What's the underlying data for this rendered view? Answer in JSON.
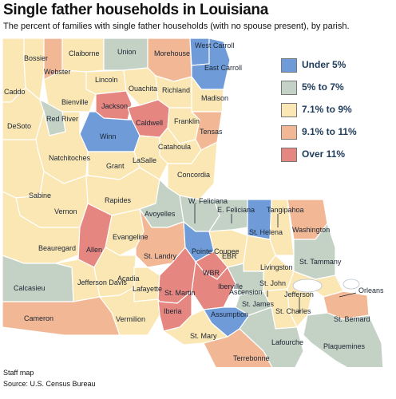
{
  "header": {
    "title": "Single father households in Louisiana",
    "subtitle": "The percent of families with single father households (with no spouse present), by parish."
  },
  "legend": [
    {
      "label": "Under 5%",
      "color": "#6f9bd8"
    },
    {
      "label": "5% to 7%",
      "color": "#c4d2c6"
    },
    {
      "label": "7.1% to 9%",
      "color": "#fbe7b4"
    },
    {
      "label": "9.1% to 11%",
      "color": "#f2b895"
    },
    {
      "label": "Over 11%",
      "color": "#e68680"
    }
  ],
  "footer": {
    "credit": "Staff map",
    "source": "Source: U.S. Census Bureau"
  },
  "parishes": [
    {
      "name": "Caddo",
      "category": 3
    },
    {
      "name": "Bossier",
      "category": 3
    },
    {
      "name": "Webster",
      "category": 4
    },
    {
      "name": "Claiborne",
      "category": 3
    },
    {
      "name": "Union",
      "category": 2
    },
    {
      "name": "Morehouse",
      "category": 4
    },
    {
      "name": "West Carroll",
      "category": 1
    },
    {
      "name": "East Carroll",
      "category": 1
    },
    {
      "name": "Lincoln",
      "category": 3
    },
    {
      "name": "Ouachita",
      "category": 3
    },
    {
      "name": "Richland",
      "category": 3
    },
    {
      "name": "Madison",
      "category": 3
    },
    {
      "name": "Bienville",
      "category": 3
    },
    {
      "name": "Jackson",
      "category": 5
    },
    {
      "name": "DeSoto",
      "category": 3
    },
    {
      "name": "Red River",
      "category": 2
    },
    {
      "name": "Caldwell",
      "category": 5
    },
    {
      "name": "Franklin",
      "category": 3
    },
    {
      "name": "Tensas",
      "category": 4
    },
    {
      "name": "Winn",
      "category": 1
    },
    {
      "name": "Natchitoches",
      "category": 3
    },
    {
      "name": "Catahoula",
      "category": 3
    },
    {
      "name": "Sabine",
      "category": 3
    },
    {
      "name": "Grant",
      "category": 3
    },
    {
      "name": "LaSalle",
      "category": 3
    },
    {
      "name": "Concordia",
      "category": 3
    },
    {
      "name": "Vernon",
      "category": 3
    },
    {
      "name": "Rapides",
      "category": 3
    },
    {
      "name": "Avoyelles",
      "category": 2
    },
    {
      "name": "W. Feliciana",
      "category": 2
    },
    {
      "name": "E. Feliciana",
      "category": 2
    },
    {
      "name": "Tangipahoa",
      "category": 3
    },
    {
      "name": "St. Helena",
      "category": 1
    },
    {
      "name": "Washington",
      "category": 4
    },
    {
      "name": "Beauregard",
      "category": 3
    },
    {
      "name": "Allen",
      "category": 5
    },
    {
      "name": "Evangeline",
      "category": 3
    },
    {
      "name": "St. Landry",
      "category": 4
    },
    {
      "name": "Pointe Coupee",
      "category": 1
    },
    {
      "name": "EBR",
      "category": 3
    },
    {
      "name": "Livingston",
      "category": 3
    },
    {
      "name": "St. Tammany",
      "category": 2
    },
    {
      "name": "Calcasieu",
      "category": 2
    },
    {
      "name": "Jefferson Davis",
      "category": 3
    },
    {
      "name": "Acadia",
      "category": 3
    },
    {
      "name": "Lafayette",
      "category": 3
    },
    {
      "name": "WBR",
      "category": 5
    },
    {
      "name": "Iberville",
      "category": 5
    },
    {
      "name": "St. Martin",
      "category": 5
    },
    {
      "name": "Ascension",
      "category": 2
    },
    {
      "name": "St. John",
      "category": 3
    },
    {
      "name": "St. James",
      "category": 2
    },
    {
      "name": "Orleans",
      "category": 3
    },
    {
      "name": "Jefferson",
      "category": 3
    },
    {
      "name": "Cameron",
      "category": 4
    },
    {
      "name": "Vermilion",
      "category": 3
    },
    {
      "name": "Iberia",
      "category": 5
    },
    {
      "name": "Assumption",
      "category": 1
    },
    {
      "name": "St. Charles",
      "category": 3
    },
    {
      "name": "St. Bernard",
      "category": 4
    },
    {
      "name": "St. Mary",
      "category": 3
    },
    {
      "name": "Lafourche",
      "category": 2
    },
    {
      "name": "Plaquemines",
      "category": 2
    },
    {
      "name": "Terrebonne",
      "category": 4
    }
  ]
}
